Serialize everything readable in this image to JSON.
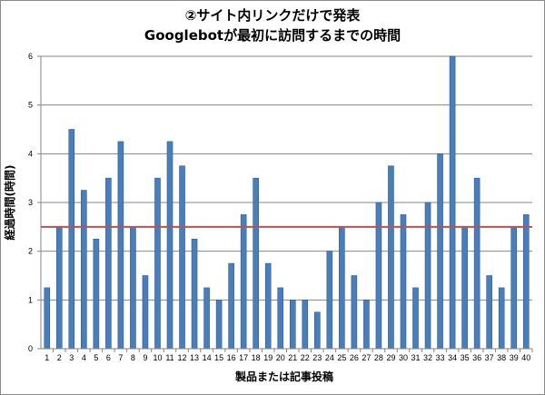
{
  "chart_data": {
    "type": "bar",
    "title": "②サイト内リンクだけで発表",
    "subtitle": "Googlebotが最初に訪問するまでの時間",
    "xlabel": "製品または記事投稿",
    "ylabel": "経過時間(時間)",
    "categories": [
      "1",
      "2",
      "3",
      "4",
      "5",
      "6",
      "7",
      "8",
      "9",
      "10",
      "11",
      "12",
      "13",
      "14",
      "15",
      "16",
      "17",
      "18",
      "19",
      "20",
      "21",
      "22",
      "23",
      "24",
      "25",
      "26",
      "27",
      "28",
      "29",
      "30",
      "31",
      "32",
      "33",
      "34",
      "35",
      "36",
      "37",
      "38",
      "39",
      "40"
    ],
    "values": [
      1.25,
      2.5,
      4.5,
      3.25,
      2.25,
      3.5,
      4.25,
      2.5,
      1.5,
      3.5,
      4.25,
      3.75,
      2.25,
      1.25,
      1.0,
      1.75,
      2.75,
      3.5,
      1.75,
      1.25,
      1.0,
      1.0,
      0.75,
      2.0,
      2.5,
      1.5,
      1.0,
      3.0,
      3.75,
      2.75,
      1.25,
      3.0,
      4.0,
      6.0,
      2.5,
      3.5,
      1.5,
      1.25,
      2.5,
      2.75
    ],
    "yticks": [
      "0",
      "1",
      "2",
      "3",
      "4",
      "5",
      "6"
    ],
    "ylim": [
      0,
      6
    ],
    "reference_line": 2.5,
    "grid": true,
    "colors": {
      "bar": "#4a7ebb",
      "bar_edge": "#2c5a94",
      "reference": "#c0504d",
      "grid": "#868686"
    }
  }
}
